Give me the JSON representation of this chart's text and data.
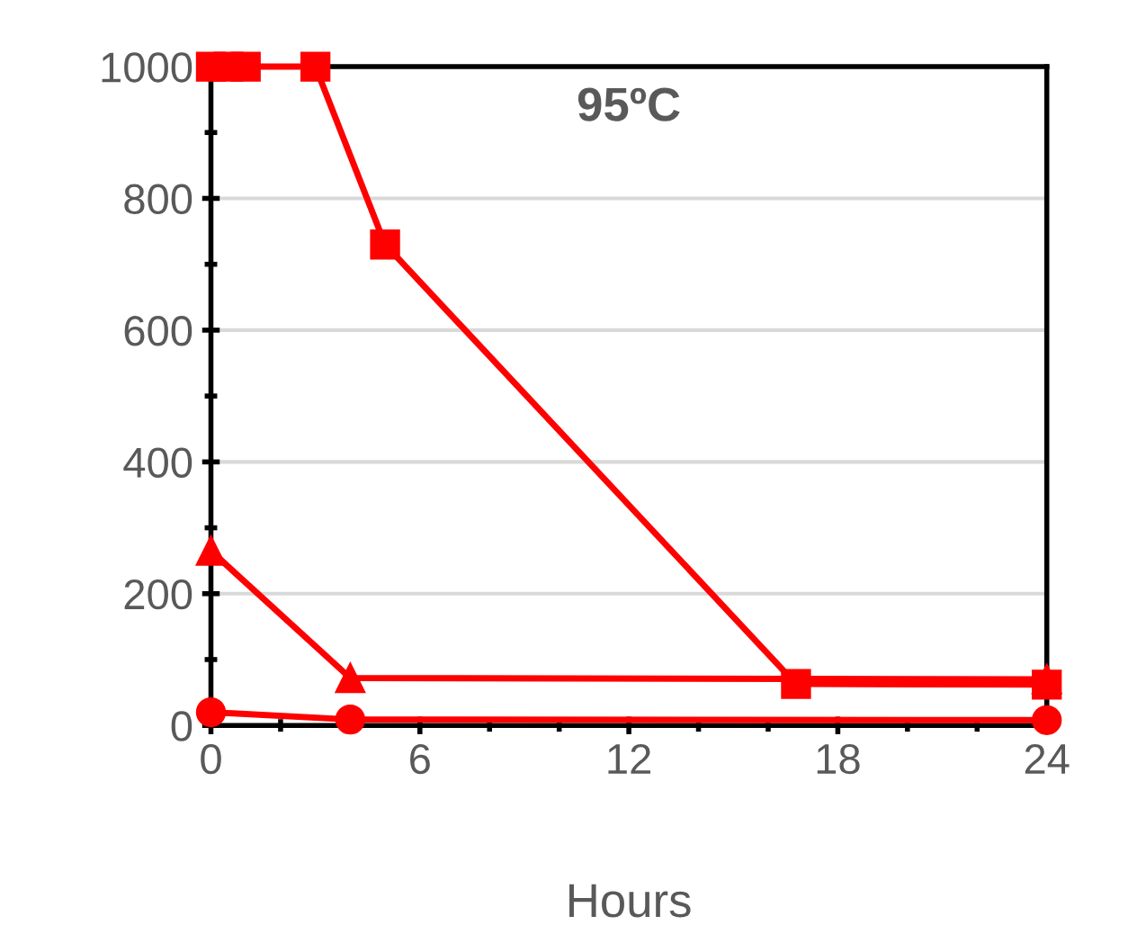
{
  "chart_data": {
    "type": "line",
    "title": "95ºC",
    "xlabel": "Hours",
    "xlim": [
      0,
      24
    ],
    "xticks": [
      0,
      6,
      12,
      18,
      24
    ],
    "ylim": [
      0,
      1000
    ],
    "yticks": [
      0,
      200,
      400,
      600,
      800,
      1000
    ],
    "grid": "y",
    "line_style": "solid",
    "series": [
      {
        "color": "#ff0000",
        "marker": "square",
        "x": [
          0,
          0.5,
          1,
          3,
          5,
          16.8,
          24
        ],
        "values": [
          1000,
          1000,
          1000,
          1000,
          730,
          63,
          62
        ]
      },
      {
        "color": "#ff0000",
        "marker": "triangle",
        "x": [
          0,
          4,
          24
        ],
        "values": [
          265,
          72,
          70
        ]
      },
      {
        "color": "#ff0000",
        "marker": "circle",
        "x": [
          0,
          4,
          24
        ],
        "values": [
          20,
          9,
          8
        ]
      }
    ]
  }
}
